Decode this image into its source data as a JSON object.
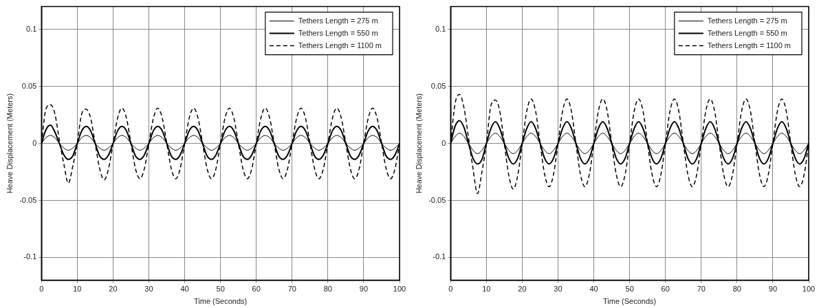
{
  "chart_data": [
    {
      "type": "line",
      "xlabel": "Time (Seconds)",
      "ylabel": "Heave Displacement (Meters)",
      "xlim": [
        0,
        100
      ],
      "xticks": [
        0,
        10,
        20,
        30,
        40,
        50,
        60,
        70,
        80,
        90,
        100
      ],
      "ylim": [
        -0.12,
        0.12
      ],
      "yticks": [
        -0.1,
        -0.05,
        0,
        0.05,
        0.1
      ],
      "grid": true,
      "legend": "top right",
      "marker": "none",
      "x": [
        0,
        1.25,
        2.5,
        3.75,
        5,
        6.25,
        7.5,
        8.75,
        10,
        11.25,
        12.5,
        13.75,
        15,
        16.25,
        17.5,
        18.75,
        20,
        21.25,
        22.5,
        23.75,
        25,
        26.25,
        27.5,
        28.75,
        30,
        31.25,
        32.5,
        33.75,
        35,
        36.25,
        37.5,
        38.75,
        40,
        41.25,
        42.5,
        43.75,
        45,
        46.25,
        47.5,
        48.75,
        50,
        51.25,
        52.5,
        53.75,
        55,
        56.25,
        57.5,
        58.75,
        60,
        61.25,
        62.5,
        63.75,
        65,
        66.25,
        67.5,
        68.75,
        70,
        71.25,
        72.5,
        73.75,
        75,
        76.25,
        77.5,
        78.75,
        80,
        81.25,
        82.5,
        83.75,
        85,
        86.25,
        87.5,
        88.75,
        90,
        91.25,
        92.5,
        93.75,
        95,
        96.25,
        97.5,
        98.75,
        100
      ],
      "series": [
        {
          "name": "Tethers Length = 275 m",
          "color": "#000000",
          "line_style": "solid",
          "values": [
            0,
            0.005,
            0.007,
            0.005,
            0,
            -0.004,
            -0.006,
            -0.004,
            0,
            0.005,
            0.007,
            0.005,
            0,
            -0.004,
            -0.006,
            -0.004,
            0,
            0.005,
            0.007,
            0.005,
            0,
            -0.004,
            -0.006,
            -0.004,
            0,
            0.005,
            0.007,
            0.005,
            0,
            -0.004,
            -0.006,
            -0.004,
            0,
            0.005,
            0.007,
            0.005,
            0,
            -0.004,
            -0.006,
            -0.004,
            0,
            0.005,
            0.007,
            0.005,
            0,
            -0.004,
            -0.006,
            -0.004,
            0,
            0.005,
            0.007,
            0.005,
            0,
            -0.004,
            -0.006,
            -0.004,
            0,
            0.005,
            0.007,
            0.005,
            0,
            -0.004,
            -0.006,
            -0.004,
            0,
            0.005,
            0.007,
            0.005,
            0,
            -0.004,
            -0.006,
            -0.004,
            0,
            0.005,
            0.007,
            0.005,
            0,
            -0.004,
            -0.006,
            -0.004,
            0
          ]
        },
        {
          "name": "Tethers Length = 550 m",
          "color": "#000000",
          "line_style": "solid",
          "values": [
            0,
            0.012,
            0.016,
            0.01,
            0,
            -0.01,
            -0.014,
            -0.011,
            0,
            0.011,
            0.015,
            0.011,
            0,
            -0.011,
            -0.014,
            -0.01,
            0,
            0.011,
            0.015,
            0.011,
            0,
            -0.011,
            -0.014,
            -0.01,
            0,
            0.011,
            0.015,
            0.011,
            0,
            -0.011,
            -0.014,
            -0.01,
            0,
            0.011,
            0.015,
            0.011,
            0,
            -0.011,
            -0.014,
            -0.01,
            0,
            0.011,
            0.015,
            0.011,
            0,
            -0.011,
            -0.014,
            -0.01,
            0,
            0.011,
            0.015,
            0.011,
            0,
            -0.011,
            -0.014,
            -0.01,
            0,
            0.011,
            0.015,
            0.011,
            0,
            -0.011,
            -0.014,
            -0.01,
            0,
            0.011,
            0.015,
            0.011,
            0,
            -0.011,
            -0.014,
            -0.01,
            0,
            0.011,
            0.015,
            0.011,
            0,
            -0.011,
            -0.014,
            -0.01,
            0
          ]
        },
        {
          "name": "Tethers Length = 1100 m",
          "color": "#000000",
          "line_style": "dashed",
          "values": [
            0,
            0.03,
            0.034,
            0.026,
            0.003,
            -0.018,
            -0.035,
            -0.02,
            0,
            0.026,
            0.03,
            0.022,
            0,
            -0.022,
            -0.032,
            -0.022,
            0,
            0.022,
            0.031,
            0.022,
            0,
            -0.022,
            -0.031,
            -0.022,
            0,
            0.022,
            0.031,
            0.022,
            0,
            -0.022,
            -0.031,
            -0.022,
            0,
            0.022,
            0.031,
            0.022,
            0,
            -0.022,
            -0.031,
            -0.022,
            0,
            0.022,
            0.031,
            0.022,
            0,
            -0.022,
            -0.031,
            -0.022,
            0,
            0.022,
            0.031,
            0.022,
            0,
            -0.022,
            -0.031,
            -0.022,
            0,
            0.022,
            0.031,
            0.022,
            0,
            -0.022,
            -0.031,
            -0.022,
            0,
            0.022,
            0.031,
            0.022,
            0,
            -0.022,
            -0.031,
            -0.022,
            0,
            0.022,
            0.031,
            0.022,
            0,
            -0.022,
            -0.031,
            -0.022,
            0
          ]
        }
      ]
    },
    {
      "type": "line",
      "xlabel": "Time (Seconds)",
      "ylabel": "Heave Displacement (Meters)",
      "xlim": [
        0,
        100
      ],
      "xticks": [
        0,
        10,
        20,
        30,
        40,
        50,
        60,
        70,
        80,
        90,
        100
      ],
      "ylim": [
        -0.12,
        0.12
      ],
      "yticks": [
        -0.1,
        -0.05,
        0,
        0.05,
        0.1
      ],
      "grid": true,
      "legend": "top right",
      "marker": "none",
      "x": [
        0,
        1.25,
        2.5,
        3.75,
        5,
        6.25,
        7.5,
        8.75,
        10,
        11.25,
        12.5,
        13.75,
        15,
        16.25,
        17.5,
        18.75,
        20,
        21.25,
        22.5,
        23.75,
        25,
        26.25,
        27.5,
        28.75,
        30,
        31.25,
        32.5,
        33.75,
        35,
        36.25,
        37.5,
        38.75,
        40,
        41.25,
        42.5,
        43.75,
        45,
        46.25,
        47.5,
        48.75,
        50,
        51.25,
        52.5,
        53.75,
        55,
        56.25,
        57.5,
        58.75,
        60,
        61.25,
        62.5,
        63.75,
        65,
        66.25,
        67.5,
        68.75,
        70,
        71.25,
        72.5,
        73.75,
        75,
        76.25,
        77.5,
        78.75,
        80,
        81.25,
        82.5,
        83.75,
        85,
        86.25,
        87.5,
        88.75,
        90,
        91.25,
        92.5,
        93.75,
        95,
        96.25,
        97.5,
        98.75,
        100
      ],
      "series": [
        {
          "name": "Tethers Length = 275 m",
          "color": "#000000",
          "line_style": "solid",
          "values": [
            0,
            0.006,
            0.009,
            0.006,
            0,
            -0.006,
            -0.009,
            -0.006,
            0,
            0.006,
            0.009,
            0.006,
            0,
            -0.006,
            -0.009,
            -0.006,
            0,
            0.006,
            0.009,
            0.006,
            0,
            -0.006,
            -0.009,
            -0.006,
            0,
            0.006,
            0.009,
            0.006,
            0,
            -0.006,
            -0.009,
            -0.006,
            0,
            0.006,
            0.009,
            0.006,
            0,
            -0.006,
            -0.009,
            -0.006,
            0,
            0.006,
            0.009,
            0.006,
            0,
            -0.006,
            -0.009,
            -0.006,
            0,
            0.006,
            0.009,
            0.006,
            0,
            -0.006,
            -0.009,
            -0.006,
            0,
            0.006,
            0.009,
            0.006,
            0,
            -0.006,
            -0.009,
            -0.006,
            0,
            0.006,
            0.009,
            0.006,
            0,
            -0.006,
            -0.009,
            -0.006,
            0,
            0.006,
            0.009,
            0.006,
            0,
            -0.006,
            -0.009,
            -0.006,
            0
          ]
        },
        {
          "name": "Tethers Length = 550 m",
          "color": "#000000",
          "line_style": "solid",
          "values": [
            0,
            0.015,
            0.02,
            0.014,
            0,
            -0.013,
            -0.018,
            -0.014,
            0,
            0.013,
            0.019,
            0.013,
            0,
            -0.013,
            -0.018,
            -0.013,
            0,
            0.013,
            0.019,
            0.013,
            0,
            -0.013,
            -0.018,
            -0.013,
            0,
            0.013,
            0.019,
            0.013,
            0,
            -0.013,
            -0.018,
            -0.013,
            0,
            0.013,
            0.019,
            0.013,
            0,
            -0.013,
            -0.018,
            -0.013,
            0,
            0.013,
            0.019,
            0.013,
            0,
            -0.013,
            -0.018,
            -0.013,
            0,
            0.013,
            0.019,
            0.013,
            0,
            -0.013,
            -0.018,
            -0.013,
            0,
            0.013,
            0.019,
            0.013,
            0,
            -0.013,
            -0.018,
            -0.013,
            0,
            0.013,
            0.019,
            0.013,
            0,
            -0.013,
            -0.018,
            -0.013,
            0,
            0.013,
            0.019,
            0.013,
            0,
            -0.013,
            -0.018,
            -0.013,
            0
          ]
        },
        {
          "name": "Tethers Length = 1100 m",
          "color": "#000000",
          "line_style": "dashed",
          "values": [
            0,
            0.035,
            0.043,
            0.031,
            0.005,
            -0.022,
            -0.044,
            -0.025,
            0,
            0.033,
            0.038,
            0.028,
            0,
            -0.028,
            -0.04,
            -0.028,
            0,
            0.028,
            0.039,
            0.028,
            0,
            -0.027,
            -0.038,
            -0.027,
            0,
            0.028,
            0.039,
            0.028,
            0,
            -0.027,
            -0.038,
            -0.027,
            0,
            0.028,
            0.039,
            0.028,
            0,
            -0.027,
            -0.038,
            -0.027,
            0,
            0.028,
            0.039,
            0.028,
            0,
            -0.027,
            -0.038,
            -0.027,
            0,
            0.028,
            0.039,
            0.028,
            0,
            -0.027,
            -0.038,
            -0.027,
            0,
            0.028,
            0.039,
            0.028,
            0,
            -0.027,
            -0.038,
            -0.027,
            0,
            0.028,
            0.039,
            0.028,
            0,
            -0.027,
            -0.038,
            -0.027,
            0,
            0.028,
            0.039,
            0.028,
            0,
            -0.027,
            -0.038,
            -0.027,
            0
          ]
        }
      ]
    }
  ]
}
